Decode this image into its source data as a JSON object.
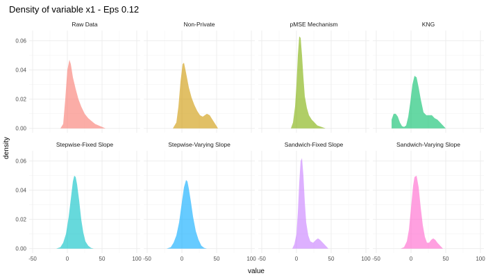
{
  "chart_data": {
    "type": "area",
    "title": "Density of variable x1 - Eps 0.12",
    "xlabel": "value",
    "ylabel": "density",
    "xlim": [
      -55,
      105
    ],
    "ylim": [
      -0.003,
      0.067
    ],
    "x_ticks": [
      -50,
      0,
      50,
      100
    ],
    "x_tick_labels": [
      "-50",
      "0",
      "50",
      "100"
    ],
    "y_ticks": [
      0.0,
      0.02,
      0.04,
      0.06
    ],
    "y_tick_labels": [
      "0.00",
      "0.02",
      "0.04",
      "0.06"
    ],
    "grid": true,
    "legend": "none",
    "layout": {
      "rows": 2,
      "cols": 4
    },
    "panels": [
      {
        "name": "Raw Data",
        "color": "#F8766D",
        "x": [
          -10,
          -6,
          -3,
          0,
          3,
          5,
          8,
          12,
          16,
          20,
          25,
          30,
          35,
          40,
          45,
          50,
          55
        ],
        "y": [
          0.0,
          0.003,
          0.02,
          0.04,
          0.047,
          0.044,
          0.035,
          0.027,
          0.02,
          0.015,
          0.01,
          0.007,
          0.005,
          0.003,
          0.002,
          0.001,
          0.0
        ]
      },
      {
        "name": "Non-Private",
        "color": "#CD9600",
        "x": [
          -13,
          -8,
          -5,
          -2,
          1,
          3,
          6,
          10,
          14,
          18,
          22,
          26,
          30,
          33,
          36,
          40,
          44,
          48,
          52
        ],
        "y": [
          0.0,
          0.004,
          0.015,
          0.032,
          0.044,
          0.045,
          0.038,
          0.028,
          0.021,
          0.016,
          0.012,
          0.009,
          0.008,
          0.009,
          0.01,
          0.009,
          0.006,
          0.003,
          0.0
        ]
      },
      {
        "name": "pMSE Mechanism",
        "color": "#7CAE00",
        "x": [
          -8,
          -5,
          -2,
          0,
          2,
          4,
          6,
          8,
          10,
          12,
          15,
          18,
          22,
          26,
          30,
          36,
          42
        ],
        "y": [
          0.0,
          0.004,
          0.015,
          0.03,
          0.05,
          0.063,
          0.062,
          0.05,
          0.035,
          0.022,
          0.014,
          0.009,
          0.006,
          0.004,
          0.002,
          0.001,
          0.0
        ]
      },
      {
        "name": "KNG",
        "color": "#00BE67",
        "x": [
          -28,
          -25,
          -22,
          -19,
          -16,
          -13,
          -10,
          -7,
          -4,
          -1,
          2,
          5,
          8,
          11,
          14,
          18,
          22,
          26,
          30,
          34,
          38,
          42,
          46,
          50
        ],
        "y": [
          0.006,
          0.01,
          0.01,
          0.008,
          0.004,
          0.0015,
          0.001,
          0.002,
          0.008,
          0.018,
          0.03,
          0.036,
          0.035,
          0.028,
          0.02,
          0.011,
          0.009,
          0.009,
          0.009,
          0.007,
          0.006,
          0.004,
          0.002,
          0.0
        ]
      },
      {
        "name": "Stepwise-Fixed Slope",
        "color": "#00BFC4",
        "x": [
          -16,
          -10,
          -6,
          -2,
          2,
          5,
          8,
          10,
          12,
          14,
          17,
          20,
          23,
          26,
          30,
          34,
          38
        ],
        "y": [
          0.0,
          0.001,
          0.004,
          0.01,
          0.022,
          0.034,
          0.046,
          0.05,
          0.049,
          0.044,
          0.033,
          0.02,
          0.011,
          0.005,
          0.002,
          0.0005,
          0.0
        ]
      },
      {
        "name": "Stepwise-Varying Slope",
        "color": "#00A9FF",
        "x": [
          -22,
          -16,
          -12,
          -8,
          -4,
          0,
          3,
          6,
          8,
          10,
          13,
          16,
          20,
          24,
          28,
          32,
          36
        ],
        "y": [
          0.0,
          0.001,
          0.004,
          0.009,
          0.018,
          0.032,
          0.042,
          0.047,
          0.046,
          0.041,
          0.032,
          0.022,
          0.012,
          0.006,
          0.002,
          0.0005,
          0.0
        ]
      },
      {
        "name": "Sandwich-Fixed Slope",
        "color": "#C77CFF",
        "x": [
          -6,
          -3,
          0,
          2,
          4,
          6,
          8,
          10,
          12,
          14,
          17,
          20,
          24,
          28,
          31,
          34,
          38,
          42,
          46
        ],
        "y": [
          0.0,
          0.003,
          0.01,
          0.025,
          0.045,
          0.06,
          0.062,
          0.05,
          0.032,
          0.018,
          0.009,
          0.005,
          0.004,
          0.006,
          0.007,
          0.006,
          0.004,
          0.002,
          0.0
        ]
      },
      {
        "name": "Sandwich-Varying Slope",
        "color": "#FF61CC",
        "x": [
          -15,
          -10,
          -6,
          -3,
          0,
          3,
          5,
          8,
          11,
          14,
          17,
          20,
          23,
          26,
          29,
          32,
          35,
          38,
          42,
          46
        ],
        "y": [
          0.0,
          0.001,
          0.005,
          0.013,
          0.028,
          0.043,
          0.049,
          0.05,
          0.042,
          0.028,
          0.016,
          0.008,
          0.004,
          0.004,
          0.006,
          0.007,
          0.006,
          0.004,
          0.002,
          0.0
        ]
      }
    ]
  }
}
